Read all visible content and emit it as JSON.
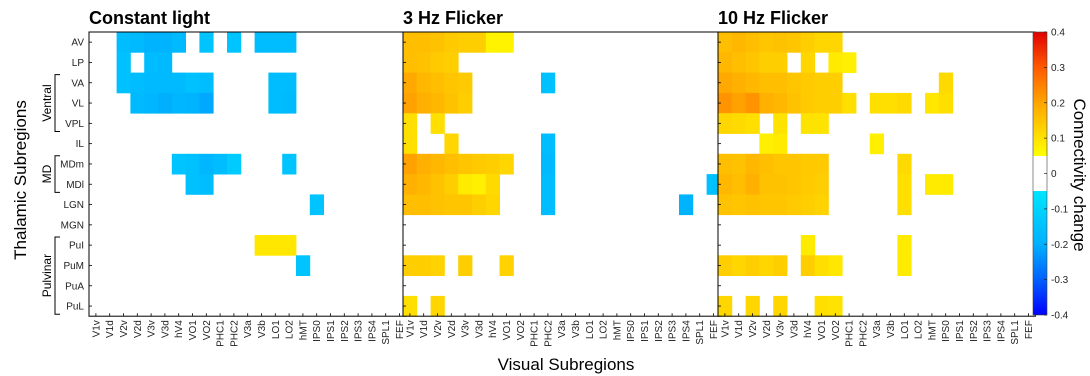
{
  "chart_data": {
    "type": "heatmap",
    "xlabel": "Visual Subregions",
    "ylabel": "Thalamic Subregions",
    "colorbar_label": "Connectivity change",
    "colorbar_ticks": [
      "0.4",
      "0.3",
      "0.2",
      "0.1",
      "0",
      "-0.1",
      "-0.2",
      "-0.3",
      "-0.4"
    ],
    "clim": [
      -0.4,
      0.4
    ],
    "colormap": "jet",
    "x_categories": [
      "V1v",
      "V1d",
      "V2v",
      "V2d",
      "V3v",
      "V3d",
      "hV4",
      "VO1",
      "VO2",
      "PHC1",
      "PHC2",
      "V3a",
      "V3b",
      "LO1",
      "LO2",
      "hMT",
      "IPS0",
      "IPS1",
      "IPS2",
      "IPS3",
      "IPS4",
      "SPL1",
      "FEF"
    ],
    "y_categories": [
      "AV",
      "LP",
      "VA",
      "VL",
      "VPL",
      "IL",
      "MDm",
      "MDl",
      "LGN",
      "MGN",
      "PuI",
      "PuM",
      "PuA",
      "PuL"
    ],
    "y_groups": [
      {
        "label": "Ventral",
        "start": 2,
        "end": 4
      },
      {
        "label": "MD",
        "start": 6,
        "end": 7
      },
      {
        "label": "Pulvinar",
        "start": 10,
        "end": 13
      }
    ],
    "panels": [
      {
        "title": "Constant light",
        "cells": [
          [
            0,
            2,
            -0.12
          ],
          [
            0,
            3,
            -0.13
          ],
          [
            0,
            4,
            -0.15
          ],
          [
            0,
            5,
            -0.15
          ],
          [
            0,
            6,
            -0.13
          ],
          [
            0,
            8,
            -0.1
          ],
          [
            0,
            10,
            -0.1
          ],
          [
            0,
            12,
            -0.12
          ],
          [
            0,
            13,
            -0.12
          ],
          [
            0,
            14,
            -0.12
          ],
          [
            1,
            2,
            -0.11
          ],
          [
            1,
            4,
            -0.12
          ],
          [
            1,
            5,
            -0.13
          ],
          [
            2,
            2,
            -0.11
          ],
          [
            2,
            3,
            -0.12
          ],
          [
            2,
            4,
            -0.13
          ],
          [
            2,
            5,
            -0.13
          ],
          [
            2,
            6,
            -0.13
          ],
          [
            2,
            7,
            -0.11
          ],
          [
            2,
            8,
            -0.12
          ],
          [
            2,
            13,
            -0.12
          ],
          [
            2,
            14,
            -0.12
          ],
          [
            3,
            3,
            -0.13
          ],
          [
            3,
            4,
            -0.14
          ],
          [
            3,
            5,
            -0.16
          ],
          [
            3,
            6,
            -0.14
          ],
          [
            3,
            7,
            -0.15
          ],
          [
            3,
            8,
            -0.17
          ],
          [
            3,
            13,
            -0.12
          ],
          [
            3,
            14,
            -0.13
          ],
          [
            6,
            6,
            -0.1
          ],
          [
            6,
            7,
            -0.11
          ],
          [
            6,
            8,
            -0.14
          ],
          [
            6,
            9,
            -0.12
          ],
          [
            6,
            10,
            -0.08
          ],
          [
            6,
            14,
            -0.1
          ],
          [
            7,
            7,
            -0.11
          ],
          [
            7,
            8,
            -0.12
          ],
          [
            8,
            16,
            -0.1
          ],
          [
            10,
            12,
            0.06
          ],
          [
            10,
            13,
            0.06
          ],
          [
            10,
            14,
            0.06
          ],
          [
            11,
            15,
            -0.1
          ]
        ]
      },
      {
        "title": "3 Hz Flicker",
        "cells": [
          [
            0,
            0,
            0.16
          ],
          [
            0,
            1,
            0.16
          ],
          [
            0,
            2,
            0.15
          ],
          [
            0,
            3,
            0.13
          ],
          [
            0,
            4,
            0.12
          ],
          [
            0,
            5,
            0.12
          ],
          [
            0,
            6,
            0.03
          ],
          [
            0,
            7,
            0.03
          ],
          [
            1,
            0,
            0.16
          ],
          [
            1,
            1,
            0.15
          ],
          [
            1,
            2,
            0.13
          ],
          [
            1,
            3,
            0.12
          ],
          [
            2,
            0,
            0.19
          ],
          [
            2,
            1,
            0.17
          ],
          [
            2,
            2,
            0.16
          ],
          [
            2,
            3,
            0.14
          ],
          [
            2,
            4,
            0.13
          ],
          [
            2,
            10,
            -0.11
          ],
          [
            3,
            0,
            0.2
          ],
          [
            3,
            1,
            0.18
          ],
          [
            3,
            2,
            0.17
          ],
          [
            3,
            3,
            0.15
          ],
          [
            3,
            4,
            0.12
          ],
          [
            4,
            0,
            0.08
          ],
          [
            4,
            2,
            0.08
          ],
          [
            5,
            0,
            0.08
          ],
          [
            5,
            3,
            0.1
          ],
          [
            5,
            10,
            -0.12
          ],
          [
            6,
            0,
            0.2
          ],
          [
            6,
            1,
            0.18
          ],
          [
            6,
            2,
            0.17
          ],
          [
            6,
            3,
            0.16
          ],
          [
            6,
            4,
            0.14
          ],
          [
            6,
            5,
            0.13
          ],
          [
            6,
            6,
            0.12
          ],
          [
            6,
            7,
            0.1
          ],
          [
            6,
            10,
            -0.13
          ],
          [
            7,
            0,
            0.18
          ],
          [
            7,
            1,
            0.17
          ],
          [
            7,
            2,
            0.15
          ],
          [
            7,
            3,
            0.12
          ],
          [
            7,
            4,
            0.05
          ],
          [
            7,
            5,
            0.04
          ],
          [
            7,
            6,
            0.09
          ],
          [
            7,
            10,
            -0.12
          ],
          [
            7,
            22,
            -0.11
          ],
          [
            8,
            0,
            0.16
          ],
          [
            8,
            1,
            0.16
          ],
          [
            8,
            2,
            0.15
          ],
          [
            8,
            3,
            0.14
          ],
          [
            8,
            4,
            0.14
          ],
          [
            8,
            5,
            0.12
          ],
          [
            8,
            6,
            0.1
          ],
          [
            8,
            10,
            -0.12
          ],
          [
            8,
            20,
            -0.15
          ],
          [
            11,
            0,
            0.12
          ],
          [
            11,
            1,
            0.12
          ],
          [
            11,
            2,
            0.11
          ],
          [
            11,
            4,
            0.12
          ],
          [
            11,
            7,
            0.11
          ],
          [
            13,
            0,
            0.08
          ],
          [
            13,
            2,
            0.1
          ]
        ]
      },
      {
        "title": "10 Hz Flicker",
        "cells": [
          [
            0,
            0,
            0.16
          ],
          [
            0,
            1,
            0.17
          ],
          [
            0,
            2,
            0.16
          ],
          [
            0,
            3,
            0.14
          ],
          [
            0,
            4,
            0.15
          ],
          [
            0,
            5,
            0.14
          ],
          [
            0,
            6,
            0.12
          ],
          [
            0,
            7,
            0.1
          ],
          [
            0,
            8,
            0.1
          ],
          [
            1,
            0,
            0.17
          ],
          [
            1,
            1,
            0.16
          ],
          [
            1,
            2,
            0.14
          ],
          [
            1,
            3,
            0.12
          ],
          [
            1,
            4,
            0.12
          ],
          [
            1,
            6,
            0.1
          ],
          [
            1,
            8,
            0.05
          ],
          [
            1,
            9,
            0.04
          ],
          [
            2,
            0,
            0.19
          ],
          [
            2,
            1,
            0.18
          ],
          [
            2,
            2,
            0.17
          ],
          [
            2,
            3,
            0.16
          ],
          [
            2,
            4,
            0.16
          ],
          [
            2,
            5,
            0.14
          ],
          [
            2,
            6,
            0.13
          ],
          [
            2,
            7,
            0.12
          ],
          [
            2,
            8,
            0.12
          ],
          [
            2,
            16,
            0.09
          ],
          [
            3,
            0,
            0.22
          ],
          [
            3,
            1,
            0.2
          ],
          [
            3,
            2,
            0.22
          ],
          [
            3,
            3,
            0.18
          ],
          [
            3,
            4,
            0.17
          ],
          [
            3,
            5,
            0.15
          ],
          [
            3,
            6,
            0.13
          ],
          [
            3,
            7,
            0.12
          ],
          [
            3,
            8,
            0.12
          ],
          [
            3,
            9,
            0.08
          ],
          [
            3,
            11,
            0.08
          ],
          [
            3,
            12,
            0.08
          ],
          [
            3,
            13,
            0.09
          ],
          [
            3,
            15,
            0.06
          ],
          [
            3,
            16,
            0.08
          ],
          [
            4,
            0,
            0.1
          ],
          [
            4,
            1,
            0.09
          ],
          [
            4,
            2,
            0.08
          ],
          [
            4,
            4,
            0.07
          ],
          [
            4,
            6,
            0.07
          ],
          [
            4,
            7,
            0.07
          ],
          [
            5,
            3,
            0.04
          ],
          [
            5,
            4,
            0.05
          ],
          [
            5,
            11,
            0.04
          ],
          [
            6,
            0,
            0.16
          ],
          [
            6,
            1,
            0.15
          ],
          [
            6,
            2,
            0.17
          ],
          [
            6,
            3,
            0.16
          ],
          [
            6,
            4,
            0.14
          ],
          [
            6,
            5,
            0.14
          ],
          [
            6,
            6,
            0.13
          ],
          [
            6,
            7,
            0.13
          ],
          [
            6,
            13,
            0.09
          ],
          [
            7,
            0,
            0.17
          ],
          [
            7,
            1,
            0.16
          ],
          [
            7,
            2,
            0.18
          ],
          [
            7,
            3,
            0.15
          ],
          [
            7,
            4,
            0.15
          ],
          [
            7,
            5,
            0.14
          ],
          [
            7,
            6,
            0.13
          ],
          [
            7,
            7,
            0.12
          ],
          [
            7,
            13,
            0.08
          ],
          [
            7,
            15,
            0.05
          ],
          [
            7,
            16,
            0.05
          ],
          [
            8,
            0,
            0.15
          ],
          [
            8,
            1,
            0.14
          ],
          [
            8,
            2,
            0.15
          ],
          [
            8,
            3,
            0.14
          ],
          [
            8,
            4,
            0.14
          ],
          [
            8,
            5,
            0.13
          ],
          [
            8,
            6,
            0.12
          ],
          [
            8,
            7,
            0.11
          ],
          [
            8,
            13,
            0.08
          ],
          [
            10,
            6,
            0.05
          ],
          [
            10,
            13,
            0.05
          ],
          [
            11,
            0,
            0.12
          ],
          [
            11,
            1,
            0.1
          ],
          [
            11,
            2,
            0.12
          ],
          [
            11,
            3,
            0.1
          ],
          [
            11,
            4,
            0.12
          ],
          [
            11,
            6,
            0.12
          ],
          [
            11,
            7,
            0.08
          ],
          [
            11,
            8,
            0.06
          ],
          [
            11,
            13,
            0.05
          ],
          [
            13,
            0,
            0.1
          ],
          [
            13,
            2,
            0.1
          ],
          [
            13,
            4,
            0.1
          ],
          [
            13,
            7,
            0.08
          ],
          [
            13,
            8,
            0.07
          ]
        ]
      }
    ]
  }
}
